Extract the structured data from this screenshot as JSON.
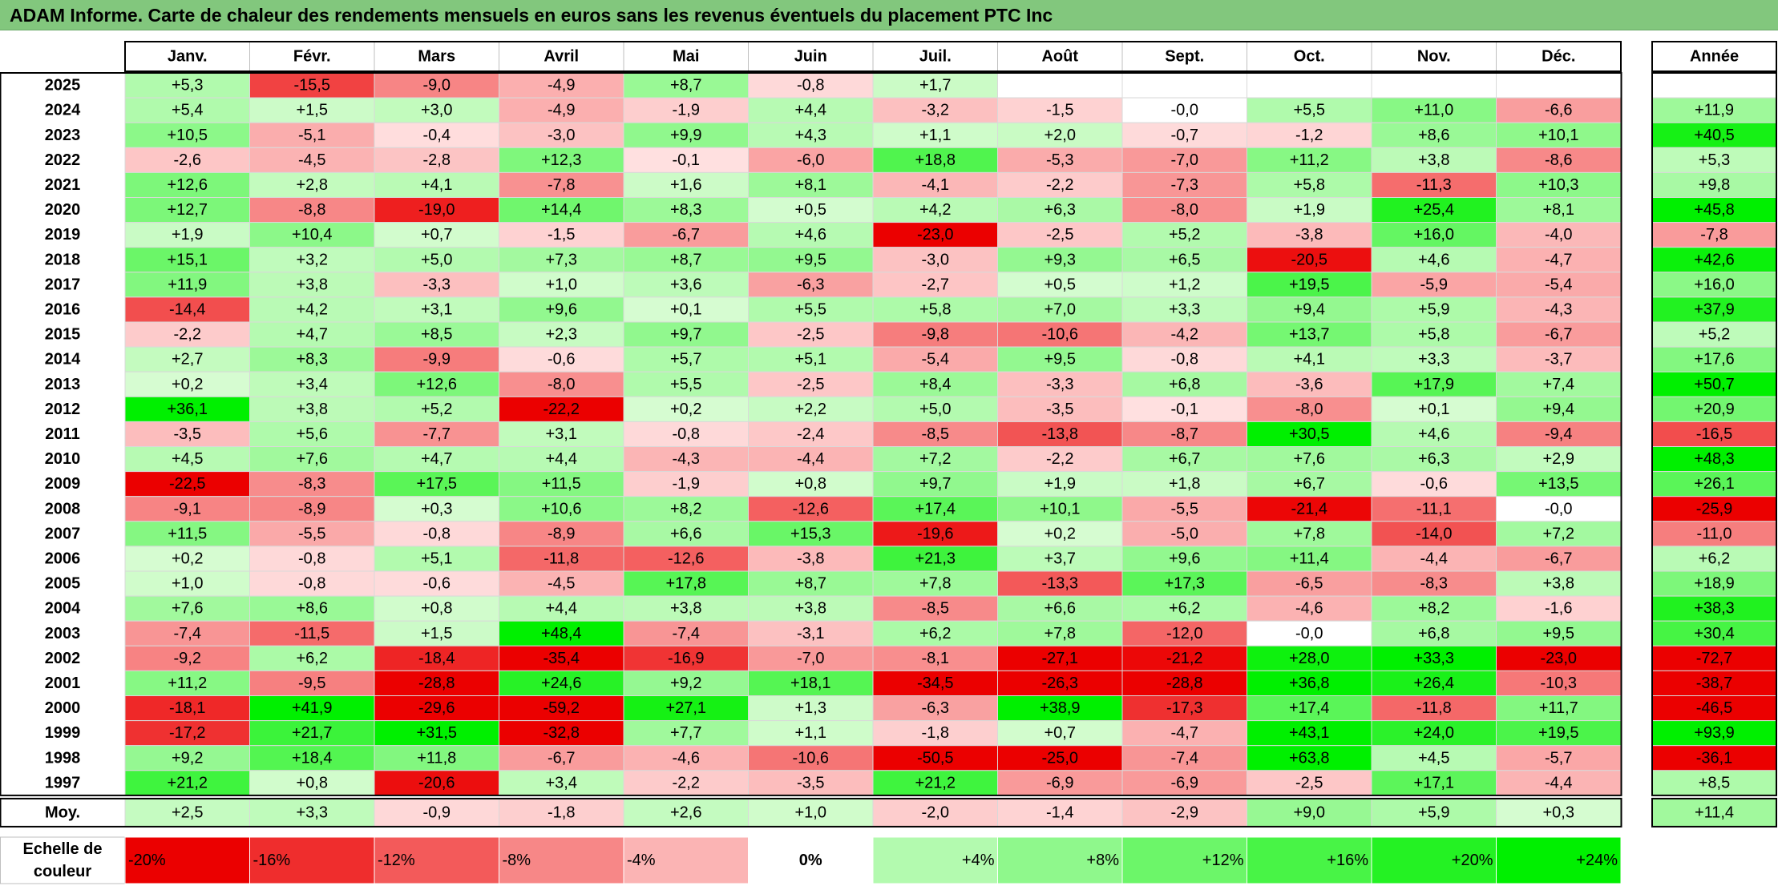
{
  "title": "ADAM Informe. Carte de chaleur des rendements mensuels en euros sans les revenus éventuels du placement PTC Inc",
  "chart_data": {
    "type": "heatmap",
    "months": [
      "Janv.",
      "Févr.",
      "Mars",
      "Avril",
      "Mai",
      "Juin",
      "Juil.",
      "Août",
      "Sept.",
      "Oct.",
      "Nov.",
      "Déc."
    ],
    "year_header": "Année",
    "rows": [
      {
        "year": "2025",
        "values": [
          5.3,
          -15.5,
          -9.0,
          -4.9,
          8.7,
          -0.8,
          1.7,
          null,
          null,
          null,
          null,
          null
        ],
        "annual": null
      },
      {
        "year": "2024",
        "values": [
          5.4,
          1.5,
          3.0,
          -4.9,
          -1.9,
          4.4,
          -3.2,
          -1.5,
          -0.0,
          5.5,
          11.0,
          -6.6
        ],
        "annual": 11.9
      },
      {
        "year": "2023",
        "values": [
          10.5,
          -5.1,
          -0.4,
          -3.0,
          9.9,
          4.3,
          1.1,
          2.0,
          -0.7,
          -1.2,
          8.6,
          10.1
        ],
        "annual": 40.5
      },
      {
        "year": "2022",
        "values": [
          -2.6,
          -4.5,
          -2.8,
          12.3,
          -0.1,
          -6.0,
          18.8,
          -5.3,
          -7.0,
          11.2,
          3.8,
          -8.6
        ],
        "annual": 5.3
      },
      {
        "year": "2021",
        "values": [
          12.6,
          2.8,
          4.1,
          -7.8,
          1.6,
          8.1,
          -4.1,
          -2.2,
          -7.3,
          5.8,
          -11.3,
          10.3
        ],
        "annual": 9.8
      },
      {
        "year": "2020",
        "values": [
          12.7,
          -8.8,
          -19.0,
          14.4,
          8.3,
          0.5,
          4.2,
          6.3,
          -8.0,
          1.9,
          25.4,
          8.1
        ],
        "annual": 45.8
      },
      {
        "year": "2019",
        "values": [
          1.9,
          10.4,
          0.7,
          -1.5,
          -6.7,
          4.6,
          -23.0,
          -2.5,
          5.2,
          -3.8,
          16.0,
          -4.0
        ],
        "annual": -7.8
      },
      {
        "year": "2018",
        "values": [
          15.1,
          3.2,
          5.0,
          7.3,
          8.7,
          9.5,
          -3.0,
          9.3,
          6.5,
          -20.5,
          4.6,
          -4.7
        ],
        "annual": 42.6
      },
      {
        "year": "2017",
        "values": [
          11.9,
          3.8,
          -3.3,
          1.0,
          3.6,
          -6.3,
          -2.7,
          0.5,
          1.2,
          19.5,
          -5.9,
          -5.4
        ],
        "annual": 16.0
      },
      {
        "year": "2016",
        "values": [
          -14.4,
          4.2,
          3.1,
          9.6,
          0.1,
          5.5,
          5.8,
          7.0,
          3.3,
          9.4,
          5.9,
          -4.3
        ],
        "annual": 37.9
      },
      {
        "year": "2015",
        "values": [
          -2.2,
          4.7,
          8.5,
          2.3,
          9.7,
          -2.5,
          -9.8,
          -10.6,
          -4.2,
          13.7,
          5.8,
          -6.7
        ],
        "annual": 5.2
      },
      {
        "year": "2014",
        "values": [
          2.7,
          8.3,
          -9.9,
          -0.6,
          5.7,
          5.1,
          -5.4,
          9.5,
          -0.8,
          4.1,
          3.3,
          -3.7
        ],
        "annual": 17.6
      },
      {
        "year": "2013",
        "values": [
          0.2,
          3.4,
          12.6,
          -8.0,
          5.5,
          -2.5,
          8.4,
          -3.3,
          6.8,
          -3.6,
          17.9,
          7.4
        ],
        "annual": 50.7
      },
      {
        "year": "2012",
        "values": [
          36.1,
          3.8,
          5.2,
          -22.2,
          0.2,
          2.2,
          5.0,
          -3.5,
          -0.1,
          -8.0,
          0.1,
          9.4
        ],
        "annual": 20.9
      },
      {
        "year": "2011",
        "values": [
          -3.5,
          5.6,
          -7.7,
          3.1,
          -0.8,
          -2.4,
          -8.5,
          -13.8,
          -8.7,
          30.5,
          4.6,
          -9.4
        ],
        "annual": -16.5
      },
      {
        "year": "2010",
        "values": [
          4.5,
          7.6,
          4.7,
          4.4,
          -4.3,
          -4.4,
          7.2,
          -2.2,
          6.7,
          7.6,
          6.3,
          2.9
        ],
        "annual": 48.3
      },
      {
        "year": "2009",
        "values": [
          -22.5,
          -8.3,
          17.5,
          11.5,
          -1.9,
          0.8,
          9.7,
          1.9,
          1.8,
          6.7,
          -0.6,
          13.5
        ],
        "annual": 26.1
      },
      {
        "year": "2008",
        "values": [
          -9.1,
          -8.9,
          0.3,
          10.6,
          8.2,
          -12.6,
          17.4,
          10.1,
          -5.5,
          -21.4,
          -11.1,
          -0.0
        ],
        "annual": -25.9
      },
      {
        "year": "2007",
        "values": [
          11.5,
          -5.5,
          -0.8,
          -8.9,
          6.6,
          15.3,
          -19.6,
          0.2,
          -5.0,
          7.8,
          -14.0,
          7.2
        ],
        "annual": -11.0
      },
      {
        "year": "2006",
        "values": [
          0.2,
          -0.8,
          5.1,
          -11.8,
          -12.6,
          -3.8,
          21.3,
          3.7,
          9.6,
          11.4,
          -4.4,
          -6.7
        ],
        "annual": 6.2
      },
      {
        "year": "2005",
        "values": [
          1.0,
          -0.8,
          -0.6,
          -4.5,
          17.8,
          8.7,
          7.8,
          -13.3,
          17.3,
          -6.5,
          -8.3,
          3.8
        ],
        "annual": 18.9
      },
      {
        "year": "2004",
        "values": [
          7.6,
          8.6,
          0.8,
          4.4,
          3.8,
          3.8,
          -8.5,
          6.6,
          6.2,
          -4.6,
          8.2,
          -1.6
        ],
        "annual": 38.3
      },
      {
        "year": "2003",
        "values": [
          -7.4,
          -11.5,
          1.5,
          48.4,
          -7.4,
          -3.1,
          6.2,
          7.8,
          -12.0,
          -0.0,
          6.8,
          9.5
        ],
        "annual": 30.4
      },
      {
        "year": "2002",
        "values": [
          -9.2,
          6.2,
          -18.4,
          -35.4,
          -16.9,
          -7.0,
          -8.1,
          -27.1,
          -21.2,
          28.0,
          33.3,
          -23.0
        ],
        "annual": -72.7
      },
      {
        "year": "2001",
        "values": [
          11.2,
          -9.5,
          -28.8,
          24.6,
          9.2,
          18.1,
          -34.5,
          -26.3,
          -28.8,
          36.8,
          26.4,
          -10.3
        ],
        "annual": -38.7
      },
      {
        "year": "2000",
        "values": [
          -18.1,
          41.9,
          -29.6,
          -59.2,
          27.1,
          1.3,
          -6.3,
          38.9,
          -17.3,
          17.4,
          -11.8,
          11.7
        ],
        "annual": -46.5
      },
      {
        "year": "1999",
        "values": [
          -17.2,
          21.7,
          31.5,
          -32.8,
          7.7,
          1.1,
          -1.8,
          0.7,
          -4.7,
          43.1,
          24.0,
          19.5
        ],
        "annual": 93.9
      },
      {
        "year": "1998",
        "values": [
          9.2,
          18.4,
          11.8,
          -6.7,
          -4.6,
          -10.6,
          -50.5,
          -25.0,
          -7.4,
          63.8,
          4.5,
          -5.7
        ],
        "annual": -36.1
      },
      {
        "year": "1997",
        "values": [
          21.2,
          0.8,
          -20.6,
          3.4,
          -2.2,
          -3.5,
          21.2,
          -6.9,
          -6.9,
          -2.5,
          17.1,
          -4.4
        ],
        "annual": 8.5
      }
    ],
    "average": {
      "label": "Moy.",
      "values": [
        2.5,
        3.3,
        -0.9,
        -1.8,
        2.6,
        1.0,
        -2.0,
        -1.4,
        -2.9,
        9.0,
        5.9,
        0.3
      ],
      "annual": 11.4
    },
    "scale": {
      "label_line1": "Echelle de",
      "label_line2": "couleur",
      "stops": [
        -20,
        -16,
        -12,
        -8,
        -4,
        0,
        4,
        8,
        12,
        16,
        20,
        24
      ],
      "labels": [
        "-20%",
        "-16%",
        "-12%",
        "-8%",
        "-4%",
        "0%",
        "+4%",
        "+8%",
        "+12%",
        "+16%",
        "+20%",
        "+24%"
      ]
    },
    "colors": {
      "negative_max": "#ff0000",
      "neutral": "#ffffff",
      "positive_max": "#00ff00",
      "title_bar": "#82c77d",
      "grid": "#d9d9d9",
      "border": "#000000"
    }
  }
}
